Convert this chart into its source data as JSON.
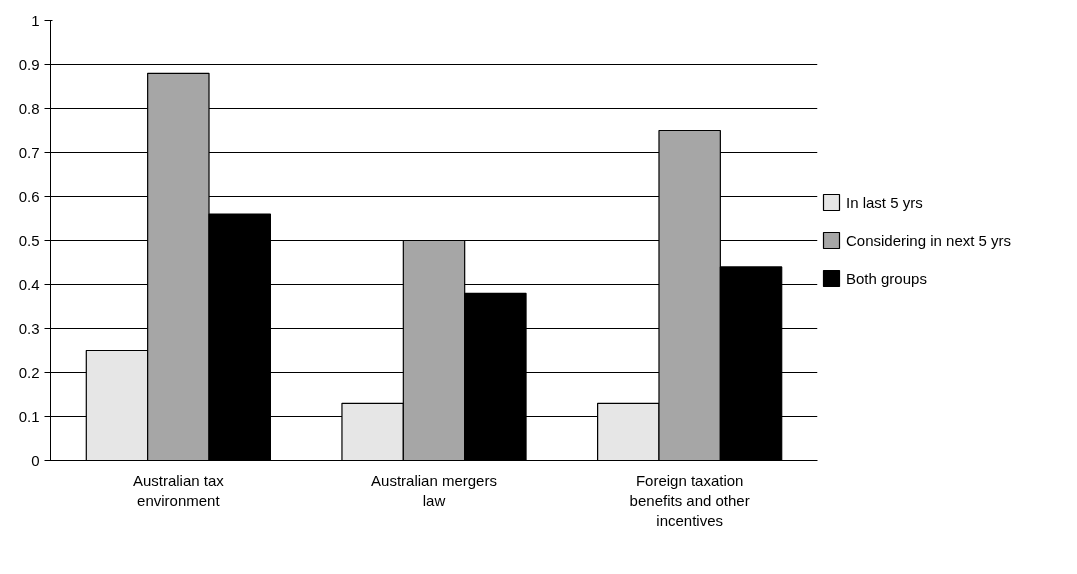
{
  "chart_data": {
    "type": "bar",
    "categories": [
      "Australian tax environment",
      "Australian mergers law",
      "Foreign taxation benefits and other incentives"
    ],
    "series": [
      {
        "name": "In last 5 yrs",
        "color": "#e6e6e6",
        "values": [
          0.25,
          0.13,
          0.13
        ]
      },
      {
        "name": "Considering in next 5 yrs",
        "color": "#a6a6a6",
        "values": [
          0.88,
          0.5,
          0.75
        ]
      },
      {
        "name": "Both groups",
        "color": "#000000",
        "values": [
          0.56,
          0.38,
          0.44
        ]
      }
    ],
    "ylim": [
      0,
      1
    ],
    "yticks": [
      0,
      0.1,
      0.2,
      0.3,
      0.4,
      0.5,
      0.6,
      0.7,
      0.8,
      0.9,
      1
    ],
    "grid": "y",
    "legend": "right"
  }
}
